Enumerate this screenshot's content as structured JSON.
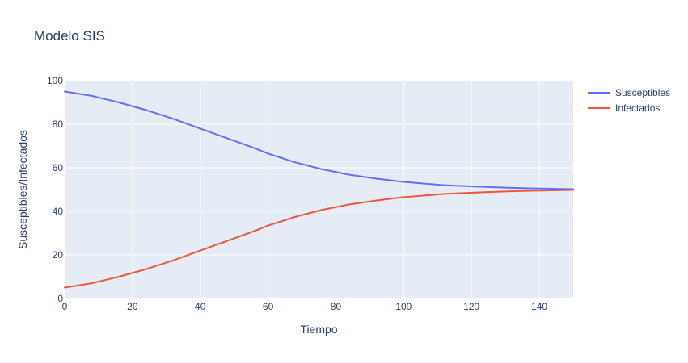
{
  "chart_data": {
    "type": "line",
    "title": "Modelo SIS",
    "xlabel": "Tiempo",
    "ylabel": "Susceptibles/Infectados",
    "xlim": [
      0,
      150
    ],
    "ylim": [
      0,
      100
    ],
    "x_ticks": [
      0,
      20,
      40,
      60,
      80,
      100,
      120,
      140
    ],
    "y_ticks": [
      0,
      20,
      40,
      60,
      80,
      100
    ],
    "grid": true,
    "legend_position": "top-right",
    "plot_background": "#e5ecf6",
    "x": [
      0,
      8,
      16,
      24,
      32,
      40,
      48,
      56,
      60,
      68,
      76,
      84,
      92,
      100,
      112,
      124,
      136,
      150
    ],
    "series": [
      {
        "name": "Susceptibles",
        "color": "#636efa",
        "values": [
          95,
          93,
          90,
          86.5,
          82.5,
          78,
          73.5,
          69,
          66.5,
          62.5,
          59.3,
          56.8,
          55,
          53.5,
          52,
          51.2,
          50.6,
          50.2
        ]
      },
      {
        "name": "Infectados",
        "color": "#ef553b",
        "values": [
          5,
          7,
          10,
          13.5,
          17.5,
          22,
          26.5,
          31,
          33.5,
          37.5,
          40.7,
          43.2,
          45,
          46.5,
          48,
          48.8,
          49.4,
          49.8
        ]
      }
    ]
  }
}
